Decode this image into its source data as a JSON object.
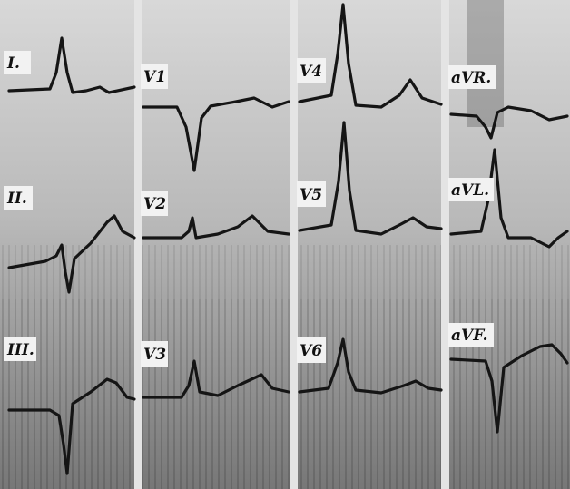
{
  "leads": [
    {
      "label": "I."
    },
    {
      "label": "II."
    },
    {
      "label": "III."
    },
    {
      "label": "V1"
    },
    {
      "label": "V2"
    },
    {
      "label": "V3"
    },
    {
      "label": "V4"
    },
    {
      "label": "V5"
    },
    {
      "label": "V6"
    },
    {
      "label": "aVR."
    },
    {
      "label": "aVL."
    },
    {
      "label": "aVF."
    }
  ]
}
